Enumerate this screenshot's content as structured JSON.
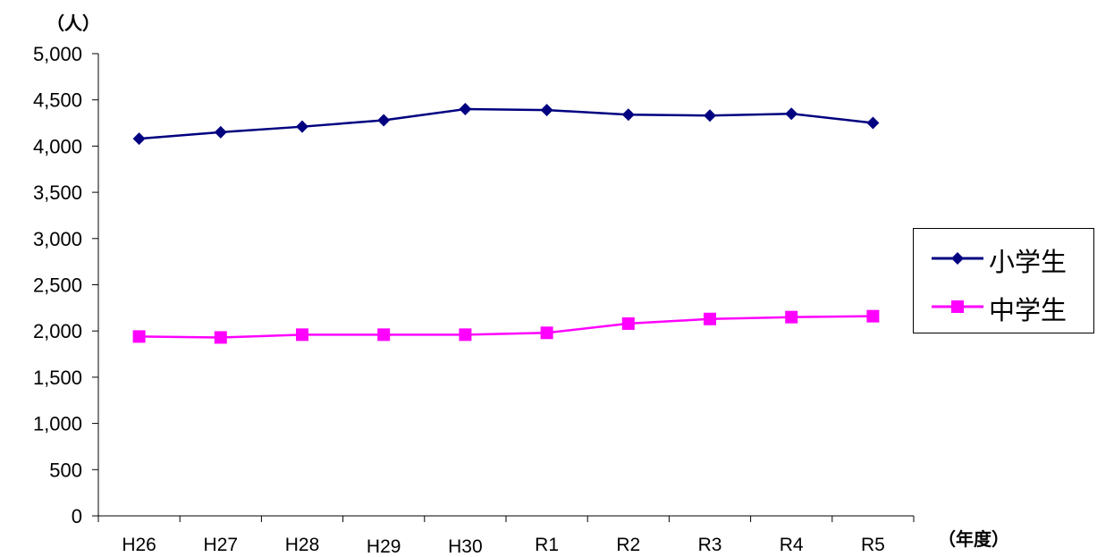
{
  "chart_data": {
    "type": "line",
    "y_unit_label": "（人）",
    "x_unit_label": "（年度）",
    "categories": [
      "H26",
      "H27",
      "H28",
      "H29",
      "H30",
      "R1",
      "R2",
      "R3",
      "R4",
      "R5"
    ],
    "ylim": [
      0,
      5000
    ],
    "yticks": [
      "0",
      "500",
      "1,000",
      "1,500",
      "2,000",
      "2,500",
      "3,000",
      "3,500",
      "4,000",
      "4,500",
      "5,000"
    ],
    "grid": false,
    "legend_placement": "right",
    "series": [
      {
        "name": "小学生",
        "marker": "diamond",
        "color": "#000080",
        "values": [
          4080,
          4150,
          4210,
          4280,
          4400,
          4390,
          4340,
          4330,
          4350,
          4250
        ]
      },
      {
        "name": "中学生",
        "marker": "square",
        "color": "#ff00ff",
        "values": [
          1940,
          1930,
          1960,
          1960,
          1960,
          1980,
          2080,
          2130,
          2150,
          2160
        ]
      }
    ]
  }
}
